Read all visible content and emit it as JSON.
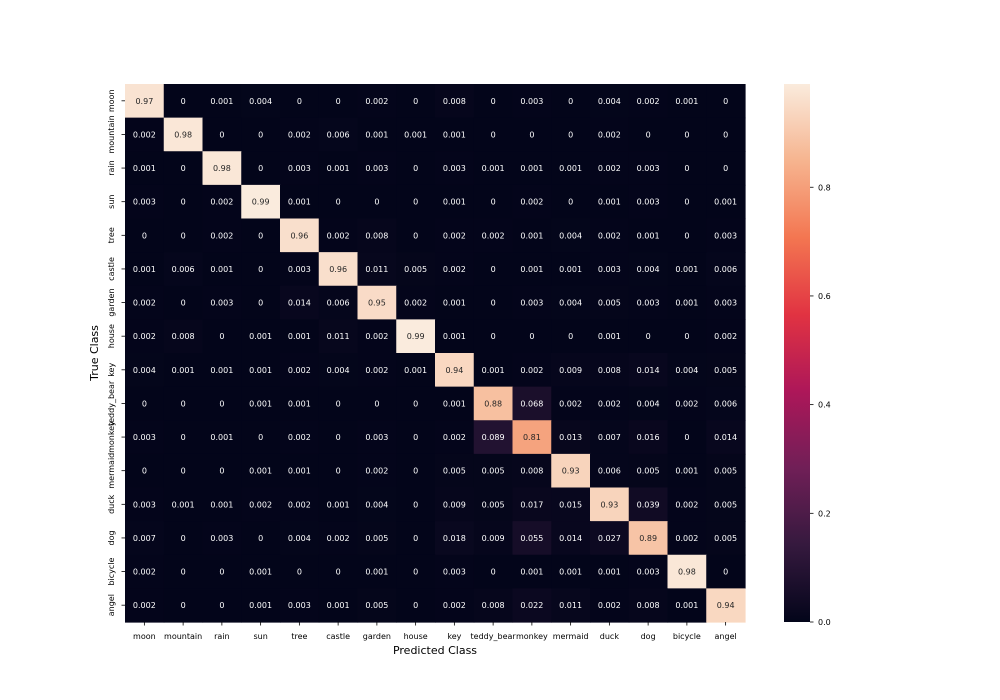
{
  "chart_data": {
    "type": "heatmap",
    "title": "",
    "xlabel": "Predicted Class",
    "ylabel": "True Class",
    "x_categories": [
      "moon",
      "mountain",
      "rain",
      "sun",
      "tree",
      "castle",
      "garden",
      "house",
      "key",
      "teddy_bear",
      "monkey",
      "mermaid",
      "duck",
      "dog",
      "bicycle",
      "angel"
    ],
    "y_categories": [
      "moon",
      "mountain",
      "rain",
      "sun",
      "tree",
      "castle",
      "garden",
      "house",
      "key",
      "teddy_bear",
      "monkey",
      "mermaid",
      "duck",
      "dog",
      "bicycle",
      "angel"
    ],
    "values": [
      [
        "0.97",
        "0",
        "0.001",
        "0.004",
        "0",
        "0",
        "0.002",
        "0",
        "0.008",
        "0",
        "0.003",
        "0",
        "0.004",
        "0.002",
        "0.001",
        "0"
      ],
      [
        "0.002",
        "0.98",
        "0",
        "0",
        "0.002",
        "0.006",
        "0.001",
        "0.001",
        "0.001",
        "0",
        "0",
        "0",
        "0.002",
        "0",
        "0",
        "0"
      ],
      [
        "0.001",
        "0",
        "0.98",
        "0",
        "0.003",
        "0.001",
        "0.003",
        "0",
        "0.003",
        "0.001",
        "0.001",
        "0.001",
        "0.002",
        "0.003",
        "0",
        "0"
      ],
      [
        "0.003",
        "0",
        "0.002",
        "0.99",
        "0.001",
        "0",
        "0",
        "0",
        "0.001",
        "0",
        "0.002",
        "0",
        "0.001",
        "0.003",
        "0",
        "0.001"
      ],
      [
        "0",
        "0",
        "0.002",
        "0",
        "0.96",
        "0.002",
        "0.008",
        "0",
        "0.002",
        "0.002",
        "0.001",
        "0.004",
        "0.002",
        "0.001",
        "0",
        "0.003"
      ],
      [
        "0.001",
        "0.006",
        "0.001",
        "0",
        "0.003",
        "0.96",
        "0.011",
        "0.005",
        "0.002",
        "0",
        "0.001",
        "0.001",
        "0.003",
        "0.004",
        "0.001",
        "0.006"
      ],
      [
        "0.002",
        "0",
        "0.003",
        "0",
        "0.014",
        "0.006",
        "0.95",
        "0.002",
        "0.001",
        "0",
        "0.003",
        "0.004",
        "0.005",
        "0.003",
        "0.001",
        "0.003"
      ],
      [
        "0.002",
        "0.008",
        "0",
        "0.001",
        "0.001",
        "0.011",
        "0.002",
        "0.99",
        "0.001",
        "0",
        "0",
        "0",
        "0.001",
        "0",
        "0",
        "0.002"
      ],
      [
        "0.004",
        "0.001",
        "0.001",
        "0.001",
        "0.002",
        "0.004",
        "0.002",
        "0.001",
        "0.94",
        "0.001",
        "0.002",
        "0.009",
        "0.008",
        "0.014",
        "0.004",
        "0.005"
      ],
      [
        "0",
        "0",
        "0",
        "0.001",
        "0.001",
        "0",
        "0",
        "0",
        "0.001",
        "0.88",
        "0.068",
        "0.002",
        "0.002",
        "0.004",
        "0.002",
        "0.006"
      ],
      [
        "0.003",
        "0",
        "0.001",
        "0",
        "0.002",
        "0",
        "0.003",
        "0",
        "0.002",
        "0.089",
        "0.81",
        "0.013",
        "0.007",
        "0.016",
        "0",
        "0.014"
      ],
      [
        "0",
        "0",
        "0",
        "0.001",
        "0.001",
        "0",
        "0.002",
        "0",
        "0.005",
        "0.005",
        "0.008",
        "0.93",
        "0.006",
        "0.005",
        "0.001",
        "0.005"
      ],
      [
        "0.003",
        "0.001",
        "0.001",
        "0.002",
        "0.002",
        "0.001",
        "0.004",
        "0",
        "0.009",
        "0.005",
        "0.017",
        "0.015",
        "0.93",
        "0.039",
        "0.002",
        "0.005"
      ],
      [
        "0.007",
        "0",
        "0.003",
        "0",
        "0.004",
        "0.002",
        "0.005",
        "0",
        "0.018",
        "0.009",
        "0.055",
        "0.014",
        "0.027",
        "0.89",
        "0.002",
        "0.005"
      ],
      [
        "0.002",
        "0",
        "0",
        "0.001",
        "0",
        "0",
        "0.001",
        "0",
        "0.003",
        "0",
        "0.001",
        "0.001",
        "0.001",
        "0.003",
        "0.98",
        "0"
      ],
      [
        "0.002",
        "0",
        "0",
        "0.001",
        "0.003",
        "0.001",
        "0.005",
        "0",
        "0.002",
        "0.008",
        "0.022",
        "0.011",
        "0.002",
        "0.008",
        "0.001",
        "0.94"
      ]
    ],
    "colorbar": {
      "min": 0,
      "max": 0.99,
      "ticks": [
        "0.0",
        "0.2",
        "0.4",
        "0.6",
        "0.8"
      ],
      "colormap": "rocket",
      "colormap_stops": [
        "#03051a",
        "#35193e",
        "#701f57",
        "#ad1759",
        "#e13342",
        "#f37651",
        "#f6b48f",
        "#faebdd"
      ]
    },
    "text_colors": {
      "dark_cell": "#ffffff",
      "light_cell": "#262626"
    },
    "axis_label_color": "#000000"
  }
}
